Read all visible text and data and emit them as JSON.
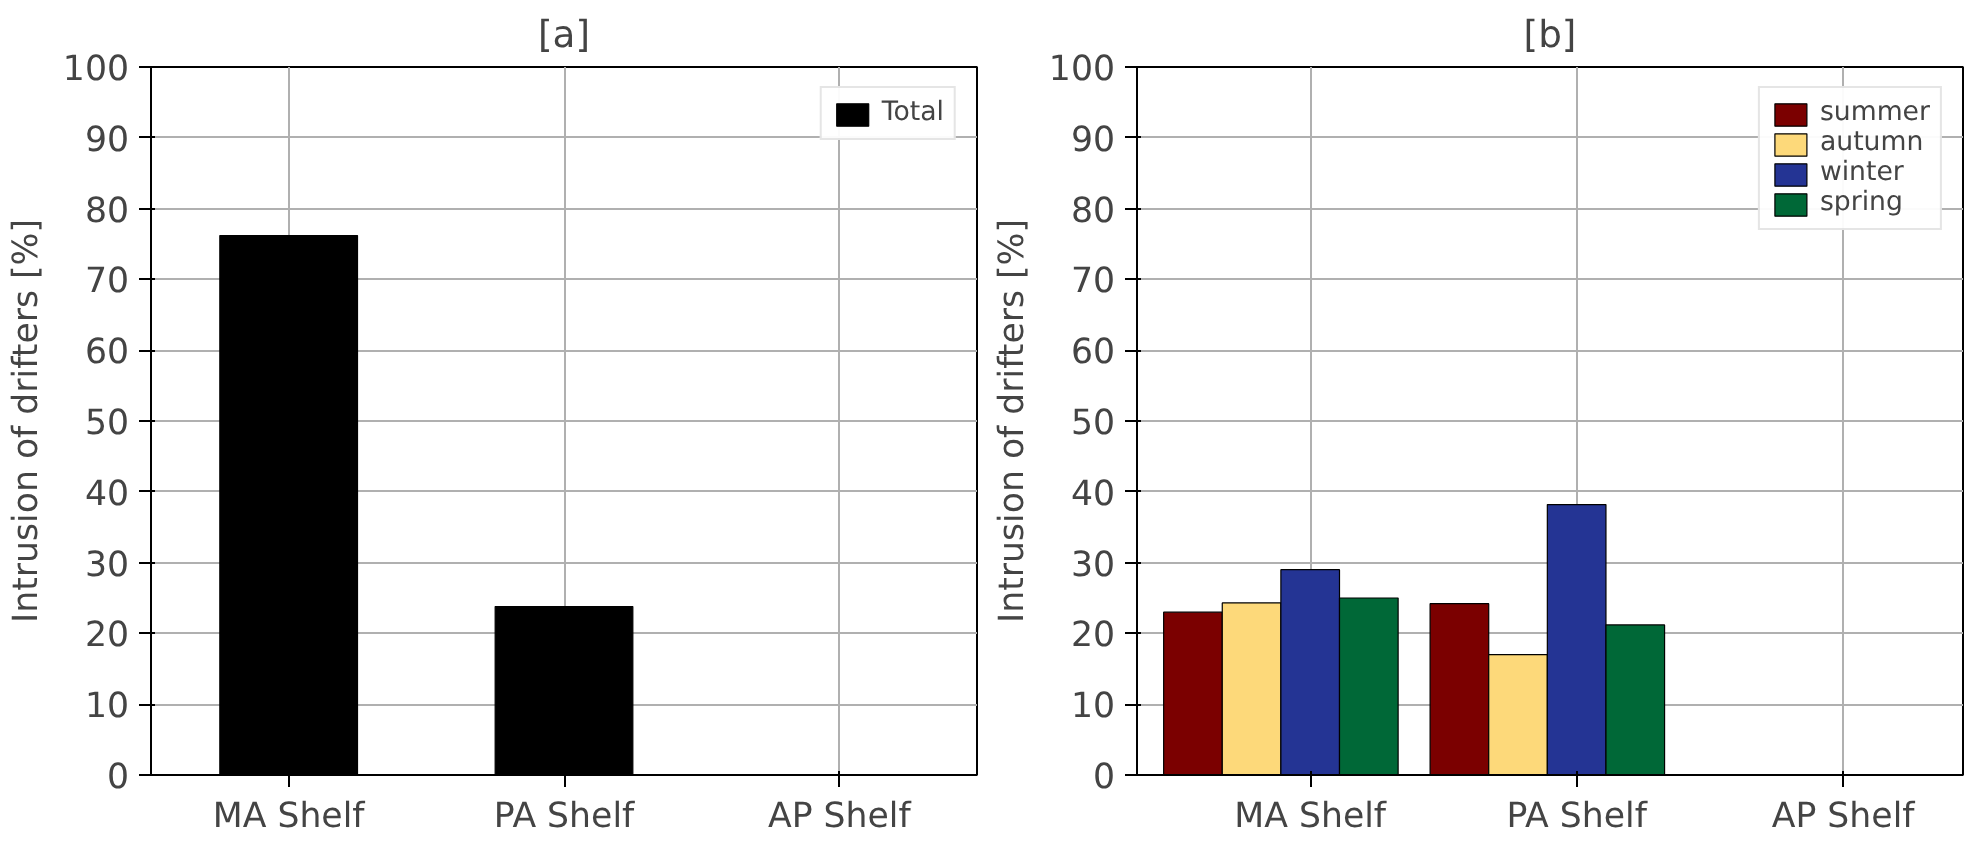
{
  "chart_data": [
    {
      "type": "bar",
      "title": "[a]",
      "ylabel": "Intrusion of drifters [%]",
      "categories": [
        "MA Shelf",
        "PA Shelf",
        "AP Shelf"
      ],
      "ylim": [
        0,
        100
      ],
      "yticks": [
        0,
        10,
        20,
        30,
        40,
        50,
        60,
        70,
        80,
        90,
        100
      ],
      "grid": true,
      "legend": "top right",
      "series": [
        {
          "name": "Total",
          "color": "#000000",
          "values": [
            76.2,
            23.8,
            0
          ]
        }
      ]
    },
    {
      "type": "bar",
      "title": "[b]",
      "ylabel": "Intrusion of drifters [%]",
      "categories": [
        "MA Shelf",
        "PA Shelf",
        "AP Shelf"
      ],
      "ylim": [
        0,
        100
      ],
      "yticks": [
        0,
        10,
        20,
        30,
        40,
        50,
        60,
        70,
        80,
        90,
        100
      ],
      "grid": true,
      "legend": "top right",
      "series": [
        {
          "name": "summer",
          "color": "#7b0000",
          "values": [
            23,
            24.2,
            0
          ]
        },
        {
          "name": "autumn",
          "color": "#fdd97a",
          "values": [
            24.3,
            17,
            0
          ]
        },
        {
          "name": "winter",
          "color": "#243494",
          "values": [
            29,
            38.2,
            0
          ]
        },
        {
          "name": "spring",
          "color": "#006837",
          "values": [
            25,
            21.2,
            0
          ]
        }
      ]
    }
  ]
}
